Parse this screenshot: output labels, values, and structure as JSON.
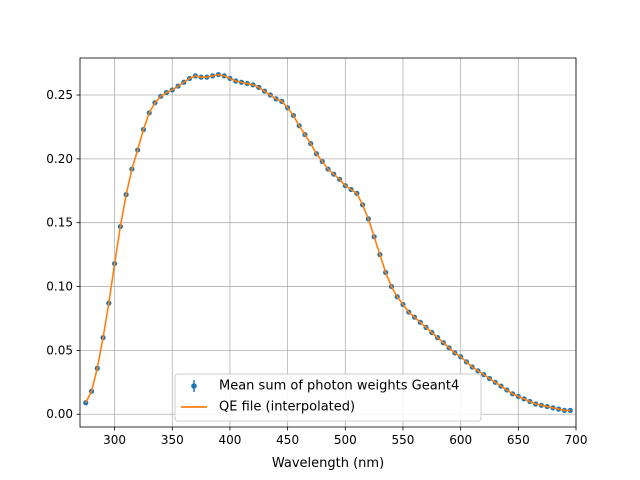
{
  "chart_data": {
    "type": "line",
    "title": "",
    "xlabel": "Wavelength (nm)",
    "ylabel": "",
    "xlim": [
      270,
      700
    ],
    "ylim": [
      -0.01,
      0.279
    ],
    "grid": true,
    "legend_position": "lower-center",
    "x_ticks": [
      300,
      350,
      400,
      450,
      500,
      550,
      600,
      650,
      700
    ],
    "y_ticks": [
      0.0,
      0.05,
      0.1,
      0.15,
      0.2,
      0.25
    ],
    "x_tick_labels": [
      "300",
      "350",
      "400",
      "450",
      "500",
      "550",
      "600",
      "650",
      "700"
    ],
    "y_tick_labels": [
      "0.00",
      "0.05",
      "0.10",
      "0.15",
      "0.20",
      "0.25"
    ],
    "series": [
      {
        "name": "Mean sum of photon weights Geant4",
        "kind": "errorbar-points",
        "color": "#1f77b4",
        "x": [
          275,
          280,
          285,
          290,
          295,
          300,
          305,
          310,
          315,
          320,
          325,
          330,
          335,
          340,
          345,
          350,
          355,
          360,
          365,
          370,
          375,
          380,
          385,
          390,
          395,
          400,
          405,
          410,
          415,
          420,
          425,
          430,
          435,
          440,
          445,
          450,
          455,
          460,
          465,
          470,
          475,
          480,
          485,
          490,
          495,
          500,
          505,
          510,
          515,
          520,
          525,
          530,
          535,
          540,
          545,
          550,
          555,
          560,
          565,
          570,
          575,
          580,
          585,
          590,
          595,
          600,
          605,
          610,
          615,
          620,
          625,
          630,
          635,
          640,
          645,
          650,
          655,
          660,
          665,
          670,
          675,
          680,
          685,
          690,
          695
        ],
        "y": [
          0.009,
          0.018,
          0.036,
          0.06,
          0.087,
          0.118,
          0.147,
          0.172,
          0.192,
          0.207,
          0.223,
          0.236,
          0.244,
          0.249,
          0.252,
          0.254,
          0.257,
          0.26,
          0.263,
          0.265,
          0.264,
          0.264,
          0.265,
          0.266,
          0.265,
          0.263,
          0.261,
          0.26,
          0.259,
          0.258,
          0.256,
          0.253,
          0.25,
          0.247,
          0.245,
          0.24,
          0.234,
          0.226,
          0.219,
          0.212,
          0.204,
          0.198,
          0.192,
          0.188,
          0.184,
          0.179,
          0.176,
          0.173,
          0.164,
          0.153,
          0.139,
          0.125,
          0.111,
          0.1,
          0.092,
          0.086,
          0.08,
          0.076,
          0.072,
          0.068,
          0.064,
          0.06,
          0.056,
          0.052,
          0.048,
          0.045,
          0.041,
          0.037,
          0.034,
          0.031,
          0.028,
          0.025,
          0.022,
          0.019,
          0.016,
          0.014,
          0.012,
          0.01,
          0.008,
          0.007,
          0.006,
          0.005,
          0.004,
          0.003,
          0.003
        ]
      },
      {
        "name": "QE file (interpolated)",
        "kind": "line",
        "color": "#ff7f0e",
        "x": [
          275,
          280,
          285,
          290,
          295,
          300,
          305,
          310,
          315,
          320,
          325,
          330,
          335,
          340,
          345,
          350,
          355,
          360,
          365,
          370,
          375,
          380,
          385,
          390,
          395,
          400,
          405,
          410,
          415,
          420,
          425,
          430,
          435,
          440,
          445,
          450,
          455,
          460,
          465,
          470,
          475,
          480,
          485,
          490,
          495,
          500,
          505,
          510,
          515,
          520,
          525,
          530,
          535,
          540,
          545,
          550,
          555,
          560,
          565,
          570,
          575,
          580,
          585,
          590,
          595,
          600,
          605,
          610,
          615,
          620,
          625,
          630,
          635,
          640,
          645,
          650,
          655,
          660,
          665,
          670,
          675,
          680,
          685,
          690,
          695
        ],
        "y": [
          0.009,
          0.018,
          0.036,
          0.06,
          0.087,
          0.118,
          0.147,
          0.172,
          0.192,
          0.207,
          0.223,
          0.236,
          0.244,
          0.249,
          0.252,
          0.254,
          0.257,
          0.26,
          0.263,
          0.265,
          0.264,
          0.264,
          0.265,
          0.266,
          0.265,
          0.263,
          0.261,
          0.26,
          0.259,
          0.258,
          0.256,
          0.253,
          0.25,
          0.247,
          0.245,
          0.24,
          0.234,
          0.226,
          0.219,
          0.212,
          0.204,
          0.198,
          0.192,
          0.188,
          0.184,
          0.179,
          0.176,
          0.173,
          0.164,
          0.153,
          0.139,
          0.125,
          0.111,
          0.1,
          0.092,
          0.086,
          0.08,
          0.076,
          0.072,
          0.068,
          0.064,
          0.06,
          0.056,
          0.052,
          0.048,
          0.045,
          0.041,
          0.037,
          0.034,
          0.031,
          0.028,
          0.025,
          0.022,
          0.019,
          0.016,
          0.014,
          0.012,
          0.01,
          0.008,
          0.007,
          0.006,
          0.005,
          0.004,
          0.003,
          0.003
        ]
      }
    ]
  }
}
